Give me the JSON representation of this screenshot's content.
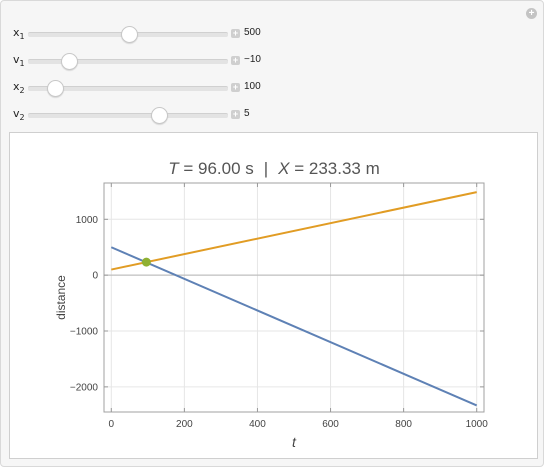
{
  "sliders": [
    {
      "name_base": "x",
      "name_sub": "1",
      "value": "500",
      "fraction": 0.5
    },
    {
      "name_base": "v",
      "name_sub": "1",
      "value": "−10",
      "fraction": 0.2
    },
    {
      "name_base": "x",
      "name_sub": "2",
      "value": "100",
      "fraction": 0.13
    },
    {
      "name_base": "v",
      "name_sub": "2",
      "value": "5",
      "fraction": 0.65
    }
  ],
  "plot": {
    "title_T_var": "T",
    "title_T_value": " = 96.00 s",
    "title_sep": "|",
    "title_X_var": "X",
    "title_X_value": " = 233.33 m"
  },
  "chart_data": {
    "type": "line",
    "xlabel": "t",
    "ylabel": "distance",
    "xlim": [
      -20,
      1020
    ],
    "ylim": [
      -2450,
      1650
    ],
    "x_ticks": [
      0,
      200,
      400,
      600,
      800,
      1000
    ],
    "x_tick_labels": [
      "0",
      "200",
      "400",
      "600",
      "800",
      "1000"
    ],
    "y_ticks": [
      -2000,
      -1000,
      0,
      1000
    ],
    "y_tick_labels": [
      "−2000",
      "−1000",
      "0",
      "1000"
    ],
    "grid": true,
    "series": [
      {
        "color": "#5e81b5",
        "x": [
          0,
          1000
        ],
        "y": [
          500,
          -2333
        ]
      },
      {
        "color": "#e19c24",
        "x": [
          0,
          1000
        ],
        "y": [
          100,
          1486
        ]
      }
    ],
    "marker": {
      "x": 96,
      "y": 233.33,
      "color": "#8fb032"
    }
  }
}
